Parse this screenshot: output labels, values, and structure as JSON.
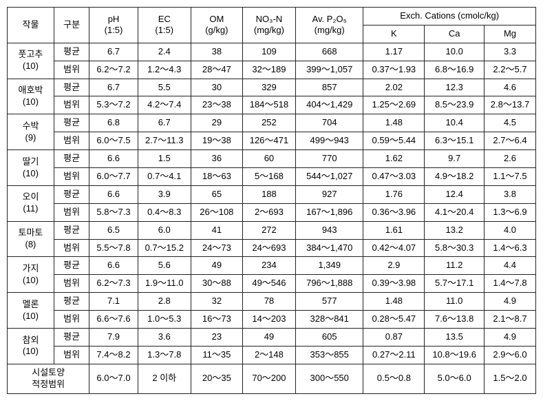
{
  "headers": {
    "crop": "작물",
    "division": "구분",
    "ph_top": "pH",
    "ph_bot": "(1:5)",
    "ec_top": "EC",
    "ec_bot": "(1:5)",
    "om_top": "OM",
    "om_bot": "(g/kg)",
    "no3_top": "NO₃-N",
    "no3_bot": "(mg/kg)",
    "avp_top": "Av. P₂O₅",
    "avp_bot": "(mg/kg)",
    "exch_group": "Exch. Cations (cmolc/kg)",
    "k": "K",
    "ca": "Ca",
    "mg": "Mg"
  },
  "row_labels": {
    "mean": "평균",
    "range": "범위"
  },
  "crops": [
    {
      "name": "풋고추",
      "n": "(10)",
      "mean": {
        "ph": "6.7",
        "ec": "2.4",
        "om": "38",
        "no3": "109",
        "avp": "668",
        "k": "1.17",
        "ca": "10.0",
        "mg": "3.3"
      },
      "range": {
        "ph": "6.2～7.2",
        "ec": "1.2～4.3",
        "om": "28～47",
        "no3": "32～189",
        "avp": "399～1,057",
        "k": "0.37～1.93",
        "ca": "6.8～16.9",
        "mg": "2.2～5.7"
      }
    },
    {
      "name": "애호박",
      "n": "(10)",
      "mean": {
        "ph": "6.7",
        "ec": "5.5",
        "om": "30",
        "no3": "329",
        "avp": "857",
        "k": "2.02",
        "ca": "12.3",
        "mg": "4.6"
      },
      "range": {
        "ph": "5.3～7.2",
        "ec": "4.2～7.4",
        "om": "23～38",
        "no3": "184～518",
        "avp": "404～1,429",
        "k": "1.25～2.69",
        "ca": "8.5～23.9",
        "mg": "2.8～13.7"
      }
    },
    {
      "name": "수박",
      "n": "(9)",
      "mean": {
        "ph": "6.8",
        "ec": "6.7",
        "om": "29",
        "no3": "252",
        "avp": "704",
        "k": "1.48",
        "ca": "10.4",
        "mg": "4.5"
      },
      "range": {
        "ph": "6.0～7.5",
        "ec": "2.7～11.3",
        "om": "19～38",
        "no3": "126～471",
        "avp": "499～943",
        "k": "0.59～5.44",
        "ca": "6.3～15.1",
        "mg": "2.7～6.4"
      }
    },
    {
      "name": "딸기",
      "n": "(10)",
      "mean": {
        "ph": "6.6",
        "ec": "1.5",
        "om": "36",
        "no3": "60",
        "avp": "770",
        "k": "1.62",
        "ca": "9.7",
        "mg": "2.6"
      },
      "range": {
        "ph": "6.0～7.7",
        "ec": "0.7～4.1",
        "om": "18～63",
        "no3": "5～168",
        "avp": "544～1,027",
        "k": "0.47～3.03",
        "ca": "4.9～18.2",
        "mg": "1.1～7.5"
      }
    },
    {
      "name": "오이",
      "n": "(11)",
      "mean": {
        "ph": "6.6",
        "ec": "3.9",
        "om": "65",
        "no3": "188",
        "avp": "927",
        "k": "1.76",
        "ca": "12.4",
        "mg": "3.8"
      },
      "range": {
        "ph": "5.8～7.3",
        "ec": "0.4～8.3",
        "om": "26～108",
        "no3": "2～693",
        "avp": "167～1,896",
        "k": "0.36～3.96",
        "ca": "4.1～20.4",
        "mg": "1.3～6.9"
      }
    },
    {
      "name": "토마토",
      "n": "(8)",
      "mean": {
        "ph": "6.5",
        "ec": "6.0",
        "om": "41",
        "no3": "272",
        "avp": "943",
        "k": "1.61",
        "ca": "13.2",
        "mg": "4.0"
      },
      "range": {
        "ph": "5.5～7.8",
        "ec": "0.7～15.2",
        "om": "24～73",
        "no3": "24～693",
        "avp": "384～1,470",
        "k": "0.42～4.07",
        "ca": "5.8～30.3",
        "mg": "1.4～6.3"
      }
    },
    {
      "name": "가지",
      "n": "(10)",
      "mean": {
        "ph": "6.6",
        "ec": "5.6",
        "om": "49",
        "no3": "234",
        "avp": "1,349",
        "k": "2.9",
        "ca": "11.2",
        "mg": "4.4"
      },
      "range": {
        "ph": "6.2～7.3",
        "ec": "1.9～11.0",
        "om": "30～88",
        "no3": "49～546",
        "avp": "796～1,888",
        "k": "0.39～3.98",
        "ca": "5.7～17.1",
        "mg": "1.4～7.8"
      }
    },
    {
      "name": "멜론",
      "n": "(10)",
      "mean": {
        "ph": "7.1",
        "ec": "2.8",
        "om": "32",
        "no3": "78",
        "avp": "577",
        "k": "1.48",
        "ca": "11.0",
        "mg": "4.9"
      },
      "range": {
        "ph": "6.6～7.6",
        "ec": "1.0～5.3",
        "om": "16～73",
        "no3": "14～203",
        "avp": "328～841",
        "k": "0.28～5.47",
        "ca": "7.6～13.8",
        "mg": "2.1～8.7"
      }
    },
    {
      "name": "참외",
      "n": "(10)",
      "mean": {
        "ph": "7.9",
        "ec": "3.6",
        "om": "23",
        "no3": "49",
        "avp": "605",
        "k": "0.87",
        "ca": "13.5",
        "mg": "4.9"
      },
      "range": {
        "ph": "7.4～8.2",
        "ec": "1.3～7.8",
        "om": "11～35",
        "no3": "2～148",
        "avp": "353～855",
        "k": "0.27～2.11",
        "ca": "10.8～19.6",
        "mg": "2.9～6.0"
      }
    }
  ],
  "optimal": {
    "label_top": "시설토양",
    "label_bot": "적정범위",
    "ph": "6.0～7.0",
    "ec": "2 이하",
    "om": "20～35",
    "no3": "70～200",
    "avp": "300～550",
    "k": "0.5～0.8",
    "ca": "5.0～6.0",
    "mg": "1.5～2.0"
  }
}
